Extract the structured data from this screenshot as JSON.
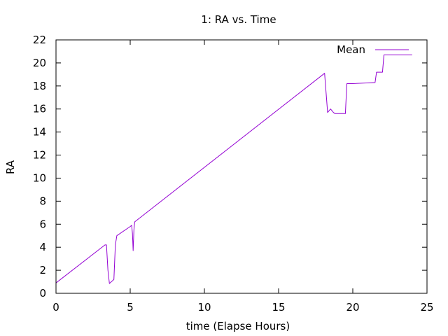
{
  "chart_data": {
    "type": "line",
    "title": "1: RA vs. Time",
    "xlabel": "time (Elapse Hours)",
    "ylabel": "RA",
    "xlim": [
      0,
      25
    ],
    "ylim": [
      0,
      22
    ],
    "xticks": [
      0,
      5,
      10,
      15,
      20,
      25
    ],
    "yticks": [
      0,
      2,
      4,
      6,
      8,
      10,
      12,
      14,
      16,
      18,
      20,
      22
    ],
    "grid": false,
    "legend_position": "top-right",
    "series": [
      {
        "name": "Mean",
        "color": "#9400d3",
        "x": [
          0.0,
          3.3,
          3.4,
          3.5,
          3.6,
          3.9,
          4.0,
          4.1,
          5.0,
          5.1,
          5.15,
          5.2,
          5.25,
          5.3,
          18.1,
          18.3,
          18.5,
          18.7,
          18.8,
          19.0,
          19.5,
          19.6,
          20.0,
          21.5,
          21.6,
          22.0,
          22.1,
          24.0
        ],
        "values": [
          0.9,
          4.2,
          4.2,
          2.0,
          0.85,
          1.2,
          4.2,
          5.0,
          5.8,
          5.9,
          5.2,
          3.7,
          5.5,
          6.2,
          19.1,
          15.7,
          16.0,
          15.7,
          15.6,
          15.6,
          15.6,
          18.2,
          18.2,
          18.3,
          19.2,
          19.2,
          20.7,
          20.7
        ]
      }
    ]
  }
}
